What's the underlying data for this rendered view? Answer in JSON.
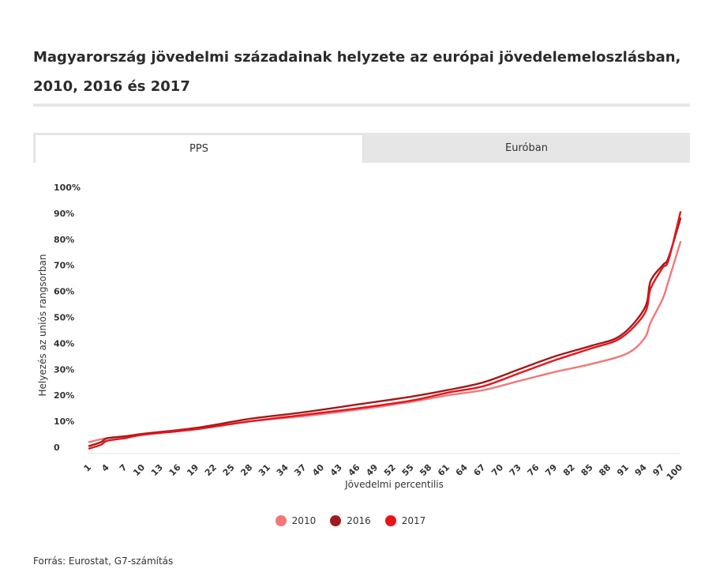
{
  "title": "Magyarország jövedelmi századainak helyzete az európai jövedelemeloszlásban, 2010, 2016 és 2017",
  "tabs": [
    {
      "label": "PPS",
      "active": true
    },
    {
      "label": "Euróban",
      "active": false
    }
  ],
  "source": "Forrás: Eurostat, G7-számítás",
  "chart_data": {
    "type": "line",
    "xlabel": "Jövedelmi percentilis",
    "ylabel": "Helyezés az uniós rangsorban",
    "ylim": [
      0,
      100
    ],
    "y_ticks": [
      "0",
      "10%",
      "20%",
      "30%",
      "40%",
      "50%",
      "60%",
      "70%",
      "80%",
      "90%",
      "100%"
    ],
    "x_ticks": [
      1,
      4,
      7,
      10,
      13,
      16,
      19,
      22,
      25,
      28,
      31,
      34,
      37,
      40,
      43,
      46,
      49,
      52,
      55,
      58,
      61,
      64,
      67,
      70,
      73,
      76,
      79,
      82,
      85,
      88,
      91,
      94,
      97,
      100
    ],
    "legend_position": "bottom-center",
    "series": [
      {
        "name": "2010",
        "color": "#f07878",
        "x": [
          1,
          4,
          10,
          19,
          28,
          37,
          46,
          55,
          61,
          67,
          73,
          79,
          85,
          91,
          94,
          95,
          97,
          98,
          100
        ],
        "values": [
          2,
          3.5,
          5,
          7,
          10,
          12,
          14.5,
          17.5,
          20,
          22,
          25.5,
          29,
          32,
          36,
          42,
          48,
          57,
          64,
          79
        ]
      },
      {
        "name": "2016",
        "color": "#9e1b1e",
        "x": [
          1,
          3,
          4,
          7,
          10,
          19,
          28,
          37,
          46,
          55,
          61,
          67,
          73,
          79,
          85,
          90,
          94,
          95,
          97,
          98,
          100
        ],
        "values": [
          0.5,
          2,
          3.5,
          4.2,
          5.2,
          7.5,
          11,
          13.5,
          16.5,
          19.5,
          22,
          25,
          30,
          35,
          39,
          43,
          53.5,
          64,
          70,
          73,
          88
        ]
      },
      {
        "name": "2017",
        "color": "#e8141a",
        "x": [
          1,
          3,
          4,
          7,
          10,
          19,
          28,
          37,
          46,
          55,
          61,
          67,
          73,
          79,
          85,
          90,
          94,
          95,
          97,
          98,
          100
        ],
        "values": [
          -0.5,
          1,
          2.5,
          3.5,
          4.8,
          7,
          10,
          12.5,
          15,
          18,
          21,
          23.5,
          28.5,
          33.5,
          38,
          42,
          51.5,
          61,
          69,
          72,
          90.5
        ]
      }
    ]
  }
}
